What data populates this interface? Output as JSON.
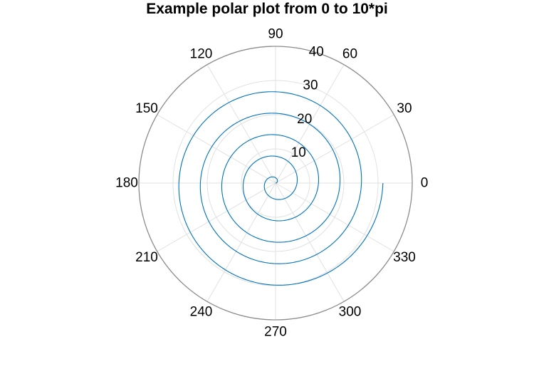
{
  "chart_data": {
    "type": "line",
    "coordinate_system": "polar",
    "title": "Example polar plot from 0 to 10*pi",
    "theta_unit": "degrees",
    "theta_ticks": [
      "0",
      "30",
      "60",
      "90",
      "120",
      "150",
      "180",
      "210",
      "240",
      "270",
      "300",
      "330"
    ],
    "r_ticks": [
      "10",
      "20",
      "30",
      "40"
    ],
    "rlim": [
      0,
      40
    ],
    "r_label_angle_deg": 80,
    "grid": true,
    "legend": "none",
    "series": [
      {
        "color": "#0072bd",
        "theta_range_rad": [
          0,
          31.4159
        ],
        "relation": "r = theta",
        "points_sampled": [
          {
            "theta_deg": 0,
            "r": 0
          },
          {
            "theta_deg": 360,
            "r": 6.28
          },
          {
            "theta_deg": 720,
            "r": 12.57
          },
          {
            "theta_deg": 1080,
            "r": 18.85
          },
          {
            "theta_deg": 1440,
            "r": 25.13
          },
          {
            "theta_deg": 1800,
            "r": 31.42
          }
        ]
      }
    ]
  }
}
